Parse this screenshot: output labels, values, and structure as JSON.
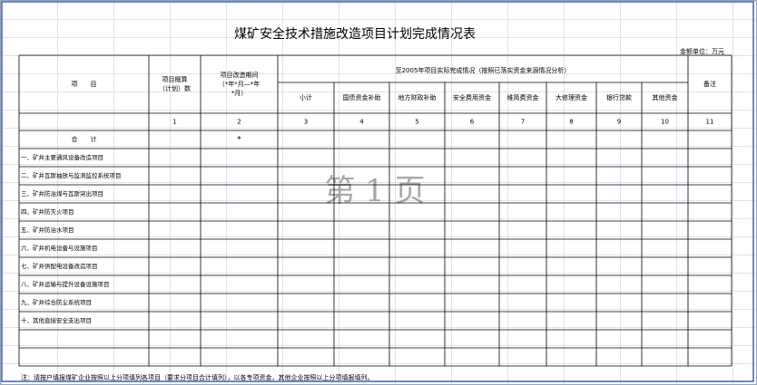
{
  "title": "煤矿安全技术措施改造项目计划完成情况表",
  "unit": "金额单位：万元",
  "header": {
    "item": "项　　目",
    "budget": [
      "项目概算",
      "（计划）数"
    ],
    "period": [
      "项目改造期间",
      "（*年*月—*年",
      "*月）"
    ],
    "actual": "至2005年项目实际完成情况（按照已落实资金来源情况分析）",
    "sub": [
      "小计",
      "国债资金补助",
      "地方财政补助",
      "安全费用资金",
      "维简费资金",
      "大修理资金",
      "银行贷款",
      "其他资金"
    ],
    "remark": "备注"
  },
  "column_numbers": [
    "1",
    "2",
    "3",
    "4",
    "5",
    "6",
    "7",
    "8",
    "9",
    "10",
    "11"
  ],
  "total": {
    "label": "合　　计",
    "period": "*"
  },
  "rows": [
    "一、矿井主要通风设备改造项目",
    "二、矿井瓦斯抽放与监测监控系统项目",
    "三、矿井防治煤与瓦斯突出项目",
    "四、矿井防灭火项目",
    "五、矿井防治水项目",
    "六、矿井机电设备与设施项目",
    "七、矿井供配电设备改造项目",
    "八、矿井运输与提升设备设施项目",
    "九、矿井综合防尘系统项目",
    "十、其他直接安全支出项目"
  ],
  "watermark": "第 1 页",
  "note": "注：请按户填报煤矿企业按照以上分项填列各项目（要求分项目合计填列），以各专项资金，其他企业按照以上分项填报填列。"
}
